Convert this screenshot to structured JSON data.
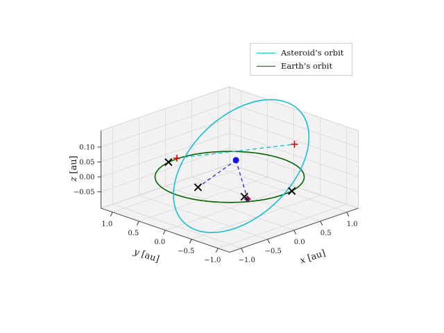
{
  "figure": {
    "background": "#ffffff",
    "pane_color": "#f2f2f2",
    "pane_edge": "#d4d4d4",
    "grid_color": "#d8d8d8",
    "axis_line_color": "#5a5a5a",
    "tick_color": "#333333",
    "text_color": "#1a1a1a"
  },
  "legend": {
    "entries": [
      {
        "label": "Asteroid’s orbit",
        "color": "#16bdcf",
        "style": "solid"
      },
      {
        "label": "Earth’s orbit",
        "color": "#006400",
        "style": "solid"
      }
    ]
  },
  "chart_data": {
    "type": "line",
    "projection": "3d",
    "title": "",
    "axes": {
      "x": {
        "var": "x",
        "unit": "[au]",
        "ticks": [
          -1.0,
          -0.5,
          0.0,
          0.5,
          1.0
        ],
        "lim": [
          -1.22,
          1.22
        ],
        "decimals": 1
      },
      "y": {
        "var": "y",
        "unit": "[au]",
        "ticks": [
          1.0,
          0.5,
          0.0,
          -0.5,
          -1.0
        ],
        "lim": [
          -1.22,
          1.22
        ],
        "decimals": 1
      },
      "z": {
        "var": "z",
        "unit": "[au]",
        "ticks": [
          -0.05,
          0.0,
          0.05,
          0.1
        ],
        "lim": [
          -0.105,
          0.155
        ],
        "decimals": 2
      }
    },
    "series": [
      {
        "name": "Asteroid's orbit",
        "kind": "ellipse3d",
        "color": "#16bdcf",
        "width": 1.6,
        "center": [
          0.41,
          0.19,
          0.0
        ],
        "axis1": [
          1.13,
          0.125,
          0.125
        ],
        "axis2": [
          -0.1,
          0.7,
          0.06
        ]
      },
      {
        "name": "Earth's orbit",
        "kind": "ellipse3d",
        "color": "#006400",
        "width": 1.6,
        "center": [
          0.0,
          0.0,
          0.0
        ],
        "axis1": [
          1.0,
          0.0,
          0.0
        ],
        "axis2": [
          0.0,
          1.0,
          0.0
        ]
      }
    ],
    "segments": [
      {
        "name": "node-line",
        "color": "#16bdcf",
        "dash": "6 4",
        "width": 1.3,
        "from": [
          0.02,
          1.02,
          0.0
        ],
        "to": [
          1.52,
          0.29,
          0.0
        ]
      },
      {
        "name": "link-to-descending-point",
        "color": "#2020ee",
        "dash": "5 4",
        "width": 1.3,
        "from": [
          0.11,
          -0.01,
          0.05
        ],
        "to": [
          -0.03,
          -0.37,
          -0.05
        ]
      },
      {
        "name": "link-to-crossing-point",
        "color": "#2020ee",
        "dash": "5 4",
        "width": 1.3,
        "from": [
          0.11,
          -0.01,
          0.05
        ],
        "to": [
          -0.34,
          0.26,
          -0.03
        ]
      }
    ],
    "markers": [
      {
        "name": "blue-dot",
        "symbol": "circle",
        "color": "#1414e0",
        "pos": [
          0.11,
          -0.01,
          0.05
        ],
        "size": 4.5
      },
      {
        "name": "blue-dot-2",
        "symbol": "circle",
        "color": "#1414e0",
        "pos": [
          -0.03,
          -0.37,
          -0.05
        ],
        "size": 3.5
      },
      {
        "name": "node-marker-1",
        "symbol": "plus",
        "color": "#e60000",
        "pos": [
          0.02,
          1.02,
          0.0
        ],
        "size": 5
      },
      {
        "name": "node-marker-2",
        "symbol": "plus",
        "color": "#e60000",
        "pos": [
          1.52,
          0.29,
          0.0
        ],
        "size": 5
      },
      {
        "name": "node-marker-3",
        "symbol": "plus",
        "color": "#e60000",
        "pos": [
          -0.03,
          -0.37,
          -0.05
        ],
        "size": 5
      },
      {
        "name": "cross-marker-1",
        "symbol": "x",
        "color": "#000000",
        "pos": [
          -0.17,
          0.99,
          0.0
        ],
        "size": 5
      },
      {
        "name": "cross-marker-2",
        "symbol": "x",
        "color": "#000000",
        "pos": [
          -0.34,
          0.26,
          -0.03
        ],
        "size": 5
      },
      {
        "name": "cross-marker-3",
        "symbol": "x",
        "color": "#000000",
        "pos": [
          -0.41,
          -0.69,
          0.0
        ],
        "size": 5
      },
      {
        "name": "cross-marker-4",
        "symbol": "x",
        "color": "#000000",
        "pos": [
          0.2,
          -0.98,
          0.0
        ],
        "size": 5
      }
    ]
  }
}
